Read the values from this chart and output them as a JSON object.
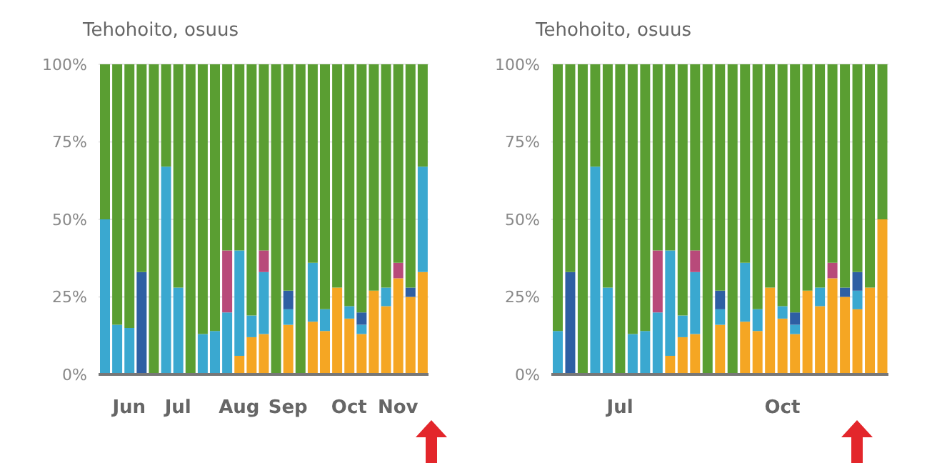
{
  "chart_data": [
    {
      "type": "bar",
      "title": "Tehohoito, osuus",
      "stacked": true,
      "grid": "y",
      "ylim": [
        0,
        100
      ],
      "yticks": [
        {
          "value": 0,
          "label": "0%"
        },
        {
          "value": 25,
          "label": "25%"
        },
        {
          "value": 50,
          "label": "50%"
        },
        {
          "value": 75,
          "label": "75%"
        },
        {
          "value": 100,
          "label": "100%"
        }
      ],
      "categories": [
        null,
        null,
        "Jun",
        null,
        null,
        null,
        "Jul",
        null,
        null,
        null,
        null,
        "Aug",
        null,
        null,
        null,
        "Sep",
        null,
        null,
        null,
        null,
        "Oct",
        null,
        null,
        null,
        "Nov",
        null,
        null
      ],
      "series": [
        {
          "color": "#f5a623",
          "values": [
            0,
            0,
            0,
            0,
            0,
            0,
            0,
            0,
            0,
            0,
            0,
            6,
            12,
            13,
            0,
            16,
            0,
            17,
            14,
            28,
            18,
            13,
            27,
            22,
            31,
            25,
            33
          ]
        },
        {
          "color": "#3aa8d0",
          "values": [
            50,
            16,
            15,
            0,
            0,
            67,
            28,
            0,
            13,
            14,
            20,
            34,
            7,
            20,
            0,
            5,
            0,
            19,
            7,
            0,
            4,
            3,
            0,
            6,
            0,
            0,
            34
          ]
        },
        {
          "color": "#2e5fa3",
          "values": [
            0,
            0,
            0,
            33,
            0,
            0,
            0,
            0,
            0,
            0,
            0,
            0,
            0,
            0,
            0,
            6,
            0,
            0,
            0,
            0,
            0,
            4,
            0,
            0,
            0,
            3,
            0
          ]
        },
        {
          "color": "#b84a7a",
          "values": [
            0,
            0,
            0,
            0,
            0,
            0,
            0,
            0,
            0,
            0,
            20,
            0,
            0,
            7,
            0,
            0,
            0,
            0,
            0,
            0,
            0,
            0,
            0,
            0,
            5,
            0,
            0
          ]
        },
        {
          "color": "#5a9e32",
          "values": [
            50,
            84,
            85,
            67,
            100,
            33,
            72,
            100,
            87,
            86,
            60,
            60,
            81,
            60,
            100,
            73,
            100,
            64,
            79,
            72,
            78,
            80,
            73,
            72,
            64,
            72,
            33
          ]
        }
      ]
    },
    {
      "type": "bar",
      "title": "Tehohoito, osuus",
      "stacked": true,
      "grid": "y",
      "ylim": [
        0,
        100
      ],
      "yticks": [
        {
          "value": 0,
          "label": "0%"
        },
        {
          "value": 25,
          "label": "25%"
        },
        {
          "value": 50,
          "label": "50%"
        },
        {
          "value": 75,
          "label": "75%"
        },
        {
          "value": 100,
          "label": "100%"
        }
      ],
      "categories": [
        null,
        null,
        null,
        null,
        null,
        "Jul",
        null,
        null,
        null,
        null,
        null,
        null,
        null,
        null,
        null,
        null,
        null,
        null,
        "Oct",
        null,
        null,
        null,
        null,
        null,
        null,
        null,
        null
      ],
      "series": [
        {
          "color": "#f5a623",
          "values": [
            0,
            0,
            0,
            0,
            0,
            0,
            0,
            0,
            0,
            6,
            12,
            13,
            0,
            16,
            0,
            17,
            14,
            28,
            18,
            13,
            27,
            22,
            31,
            25,
            21,
            28,
            50
          ]
        },
        {
          "color": "#3aa8d0",
          "values": [
            14,
            0,
            0,
            67,
            28,
            0,
            13,
            14,
            20,
            34,
            7,
            20,
            0,
            5,
            0,
            19,
            7,
            0,
            4,
            3,
            0,
            6,
            0,
            0,
            6,
            0,
            0
          ]
        },
        {
          "color": "#2e5fa3",
          "values": [
            0,
            33,
            0,
            0,
            0,
            0,
            0,
            0,
            0,
            0,
            0,
            0,
            0,
            6,
            0,
            0,
            0,
            0,
            0,
            4,
            0,
            0,
            0,
            3,
            6,
            0,
            0
          ]
        },
        {
          "color": "#b84a7a",
          "values": [
            0,
            0,
            0,
            0,
            0,
            0,
            0,
            0,
            20,
            0,
            0,
            7,
            0,
            0,
            0,
            0,
            0,
            0,
            0,
            0,
            0,
            0,
            5,
            0,
            0,
            0,
            0
          ]
        },
        {
          "color": "#5a9e32",
          "values": [
            86,
            67,
            100,
            33,
            72,
            100,
            87,
            86,
            60,
            60,
            81,
            60,
            100,
            73,
            100,
            64,
            79,
            72,
            78,
            80,
            73,
            72,
            64,
            72,
            67,
            72,
            50
          ]
        }
      ]
    }
  ]
}
